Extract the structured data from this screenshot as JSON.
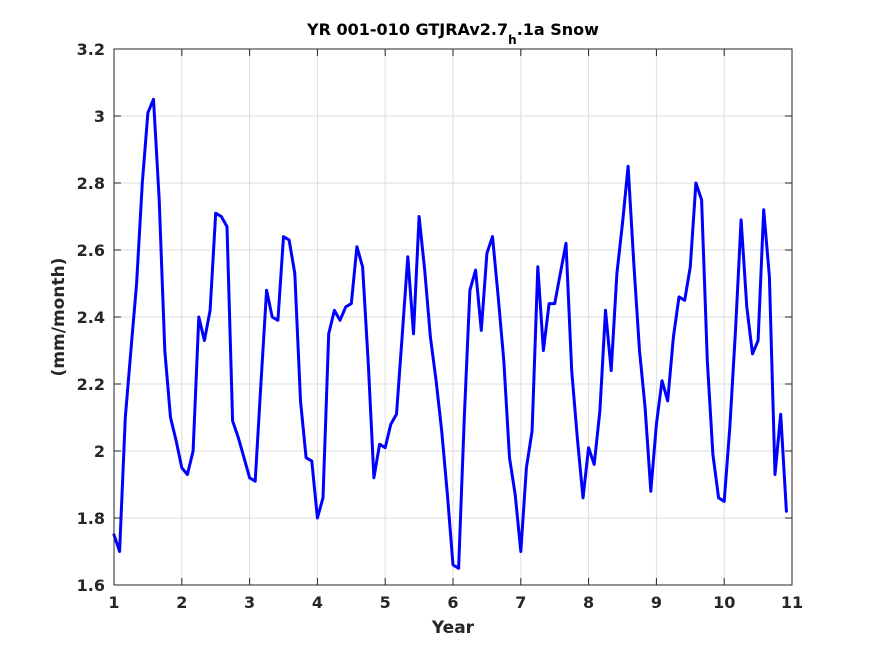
{
  "chart_data": {
    "type": "line",
    "title": {
      "main": "YR 001-010 GTJRAv2.7",
      "subscript": "h",
      "suffix": ".1a Snow"
    },
    "xlabel": "Year",
    "ylabel": "(mm/month)",
    "xlim": [
      1,
      11
    ],
    "ylim": [
      1.6,
      3.2
    ],
    "xticks": [
      1,
      2,
      3,
      4,
      5,
      6,
      7,
      8,
      9,
      10,
      11
    ],
    "yticks": [
      1.6,
      1.8,
      2,
      2.2,
      2.4,
      2.6,
      2.8,
      3,
      3.2
    ],
    "xtick_labels": [
      "1",
      "2",
      "3",
      "4",
      "5",
      "6",
      "7",
      "8",
      "9",
      "10",
      "11"
    ],
    "ytick_labels": [
      "1.6",
      "1.8",
      "2",
      "2.2",
      "2.4",
      "2.6",
      "2.8",
      "3",
      "3.2"
    ],
    "grid": true,
    "line_color": "#0000ff",
    "series": [
      {
        "x": [
          1.0,
          1.083,
          1.167,
          1.25,
          1.333,
          1.417,
          1.5,
          1.583,
          1.667,
          1.75,
          1.833,
          1.917,
          2.0,
          2.083,
          2.167,
          2.25,
          2.333,
          2.417,
          2.5,
          2.583,
          2.667,
          2.75,
          2.833,
          2.917,
          3.0,
          3.083,
          3.167,
          3.25,
          3.333,
          3.417,
          3.5,
          3.583,
          3.667,
          3.75,
          3.833,
          3.917,
          4.0,
          4.083,
          4.167,
          4.25,
          4.333,
          4.417,
          4.5,
          4.583,
          4.667,
          4.75,
          4.833,
          4.917,
          5.0,
          5.083,
          5.167,
          5.25,
          5.333,
          5.417,
          5.5,
          5.583,
          5.667,
          5.75,
          5.833,
          5.917,
          6.0,
          6.083,
          6.167,
          6.25,
          6.333,
          6.417,
          6.5,
          6.583,
          6.667,
          6.75,
          6.833,
          6.917,
          7.0,
          7.083,
          7.167,
          7.25,
          7.333,
          7.417,
          7.5,
          7.583,
          7.667,
          7.75,
          7.833,
          7.917,
          8.0,
          8.083,
          8.167,
          8.25,
          8.333,
          8.417,
          8.5,
          8.583,
          8.667,
          8.75,
          8.833,
          8.917,
          9.0,
          9.083,
          9.167,
          9.25,
          9.333,
          9.417,
          9.5,
          9.583,
          9.667,
          9.75,
          9.833,
          9.917,
          10.0,
          10.083,
          10.167,
          10.25,
          10.333,
          10.417,
          10.5,
          10.583,
          10.667,
          10.75,
          10.833,
          10.917
        ],
        "y": [
          1.75,
          1.7,
          2.1,
          2.3,
          2.5,
          2.8,
          3.01,
          3.05,
          2.75,
          2.3,
          2.1,
          2.03,
          1.95,
          1.93,
          2.0,
          2.4,
          2.33,
          2.42,
          2.71,
          2.7,
          2.67,
          2.09,
          2.04,
          1.98,
          1.92,
          1.91,
          2.2,
          2.48,
          2.4,
          2.39,
          2.64,
          2.63,
          2.53,
          2.15,
          1.98,
          1.97,
          1.8,
          1.86,
          2.35,
          2.42,
          2.39,
          2.43,
          2.44,
          2.61,
          2.55,
          2.26,
          1.92,
          2.02,
          2.01,
          2.08,
          2.11,
          2.34,
          2.58,
          2.35,
          2.7,
          2.54,
          2.34,
          2.21,
          2.06,
          1.87,
          1.66,
          1.65,
          2.1,
          2.48,
          2.54,
          2.36,
          2.59,
          2.64,
          2.46,
          2.27,
          1.98,
          1.87,
          1.7,
          1.95,
          2.06,
          2.55,
          2.3,
          2.44,
          2.44,
          2.53,
          2.62,
          2.24,
          2.04,
          1.86,
          2.01,
          1.96,
          2.12,
          2.42,
          2.24,
          2.53,
          2.68,
          2.85,
          2.56,
          2.3,
          2.13,
          1.88,
          2.08,
          2.21,
          2.15,
          2.34,
          2.46,
          2.45,
          2.55,
          2.8,
          2.75,
          2.27,
          1.99,
          1.86,
          1.85,
          2.07,
          2.36,
          2.69,
          2.43,
          2.29,
          2.33,
          2.72,
          2.52,
          1.93,
          2.11,
          1.82
        ]
      }
    ]
  }
}
